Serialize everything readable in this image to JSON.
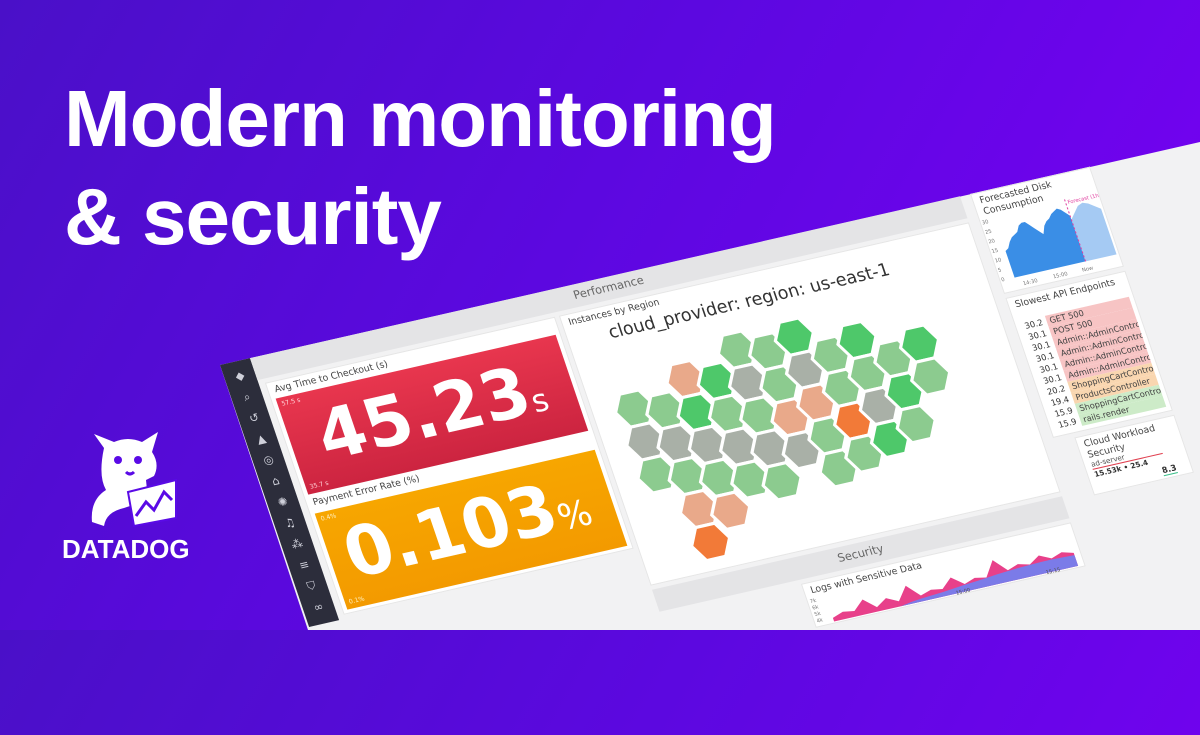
{
  "headline": {
    "line1": "Modern monitoring",
    "line2": "& security"
  },
  "brand": {
    "name": "DATADOG"
  },
  "colors": {
    "bg_start": "#4a10c8",
    "bg_end": "#7a00f5",
    "red": "#e0334a",
    "orange": "#f5a000",
    "blue": "#3a8ee6",
    "pink": "#e8408a",
    "purple": "#7b7be8"
  },
  "sidebar": {
    "icons": [
      "dog-logo-icon",
      "search-icon",
      "history-icon",
      "chart-icon",
      "radar-icon",
      "infrastructure-icon",
      "apm-icon",
      "notebook-icon",
      "integrations-icon",
      "logs-icon",
      "security-icon",
      "link-icon"
    ]
  },
  "performance": {
    "title": "Performance",
    "avg_checkout": {
      "title": "Avg Time to Checkout (s)",
      "value": "45.23",
      "unit": "s",
      "y_top": "57.5 s",
      "y_bottom": "35.7 s"
    },
    "payment_error": {
      "title": "Payment Error Rate (%)",
      "value": "0.103",
      "unit": "%",
      "y_top": "0.4%",
      "y_bottom": "0.1%"
    },
    "hexmap": {
      "title": "Instances by Region",
      "group": "cloud_provider: region: us-east-1",
      "columns": [
        [
          "lg",
          "gr",
          "lg"
        ],
        [
          "lg",
          "gr",
          "lg",
          "sa",
          "or"
        ],
        [
          "sa",
          "g",
          "gr",
          "lg",
          "sa"
        ],
        [
          "g",
          "lg",
          "gr",
          "lg"
        ],
        [
          "lg",
          "gr",
          "lg",
          "gr",
          "lg"
        ],
        [
          "lg",
          "lg",
          "sa",
          "gr"
        ],
        [
          "g",
          "gr",
          "sa",
          "lg",
          "lg"
        ],
        [
          "lg",
          "lg",
          "or",
          "lg"
        ],
        [
          "g",
          "lg",
          "gr",
          "g"
        ],
        [
          "lg",
          "g",
          "lg"
        ],
        [
          "g",
          "lg"
        ]
      ],
      "palette": {
        "lg": "#8ccb8f",
        "g": "#4ec86a",
        "gr": "#a9b0a7",
        "sa": "#e9a98a",
        "or": "#f27a38"
      }
    }
  },
  "disk": {
    "title": "Forecasted Disk Consumption",
    "forecast_label": "Forecast (1h)",
    "y_ticks": [
      "30",
      "25",
      "20",
      "15",
      "10",
      "5",
      "0"
    ],
    "x_ticks": [
      "14:30",
      "15:00",
      "Now"
    ],
    "values": [
      14,
      15,
      18,
      20,
      21,
      22,
      25,
      26,
      26,
      24,
      22,
      20,
      18,
      22,
      24,
      25,
      27,
      28,
      29,
      28,
      26,
      24
    ],
    "forecast": [
      22,
      25,
      28,
      29,
      28,
      26,
      24
    ]
  },
  "slowest": {
    "title": "Slowest API Endpoints",
    "rows": [
      {
        "value": "30.2",
        "label": "GET 500",
        "color": "#f7c4c4"
      },
      {
        "value": "30.1",
        "label": "POST 500",
        "color": "#f7c4c4"
      },
      {
        "value": "30.1",
        "label": "Admin::AdminController",
        "color": "#f7c4c4"
      },
      {
        "value": "30.1",
        "label": "Admin::AdminController",
        "color": "#f7c4c4"
      },
      {
        "value": "30.1",
        "label": "Admin::AdminController",
        "color": "#f7c4c4"
      },
      {
        "value": "30.1",
        "label": "Admin::AdminController",
        "color": "#f7c4c4"
      },
      {
        "value": "20.2",
        "label": "ShoppingCartController",
        "color": "#f9d6b0"
      },
      {
        "value": "19.4",
        "label": "ProductsController",
        "color": "#f9d6b0"
      },
      {
        "value": "15.9",
        "label": "ShoppingCartController",
        "color": "#cdebc8"
      },
      {
        "value": "15.9",
        "label": "rails.render",
        "color": "#cdebc8"
      }
    ]
  },
  "security": {
    "title": "Security",
    "logs": {
      "title": "Logs with Sensitive Data",
      "y_ticks": [
        "7k",
        "6k",
        "5k",
        "4k"
      ],
      "x_ticks": [
        "15:00",
        "15:15"
      ],
      "spikes": [
        1,
        2,
        1.5,
        4,
        1.2,
        3,
        1.4,
        5,
        1.6,
        2.5,
        2,
        4.5,
        2,
        3,
        2.4,
        6.5,
        3,
        4,
        3.2,
        5,
        3.5,
        4.5,
        3.6
      ],
      "base": [
        0,
        0,
        0,
        0,
        0,
        0,
        0,
        0.5,
        0.8,
        1,
        1.2,
        1.5,
        1.8,
        2,
        2.3,
        2.6,
        2.8,
        3,
        3.1,
        3.2,
        3.2,
        3.1,
        3
      ]
    },
    "cloud_workload": {
      "title": "Cloud Workload Security",
      "series": "ad-server",
      "value": "15.53k • 25.4",
      "value2": "8.3"
    }
  }
}
